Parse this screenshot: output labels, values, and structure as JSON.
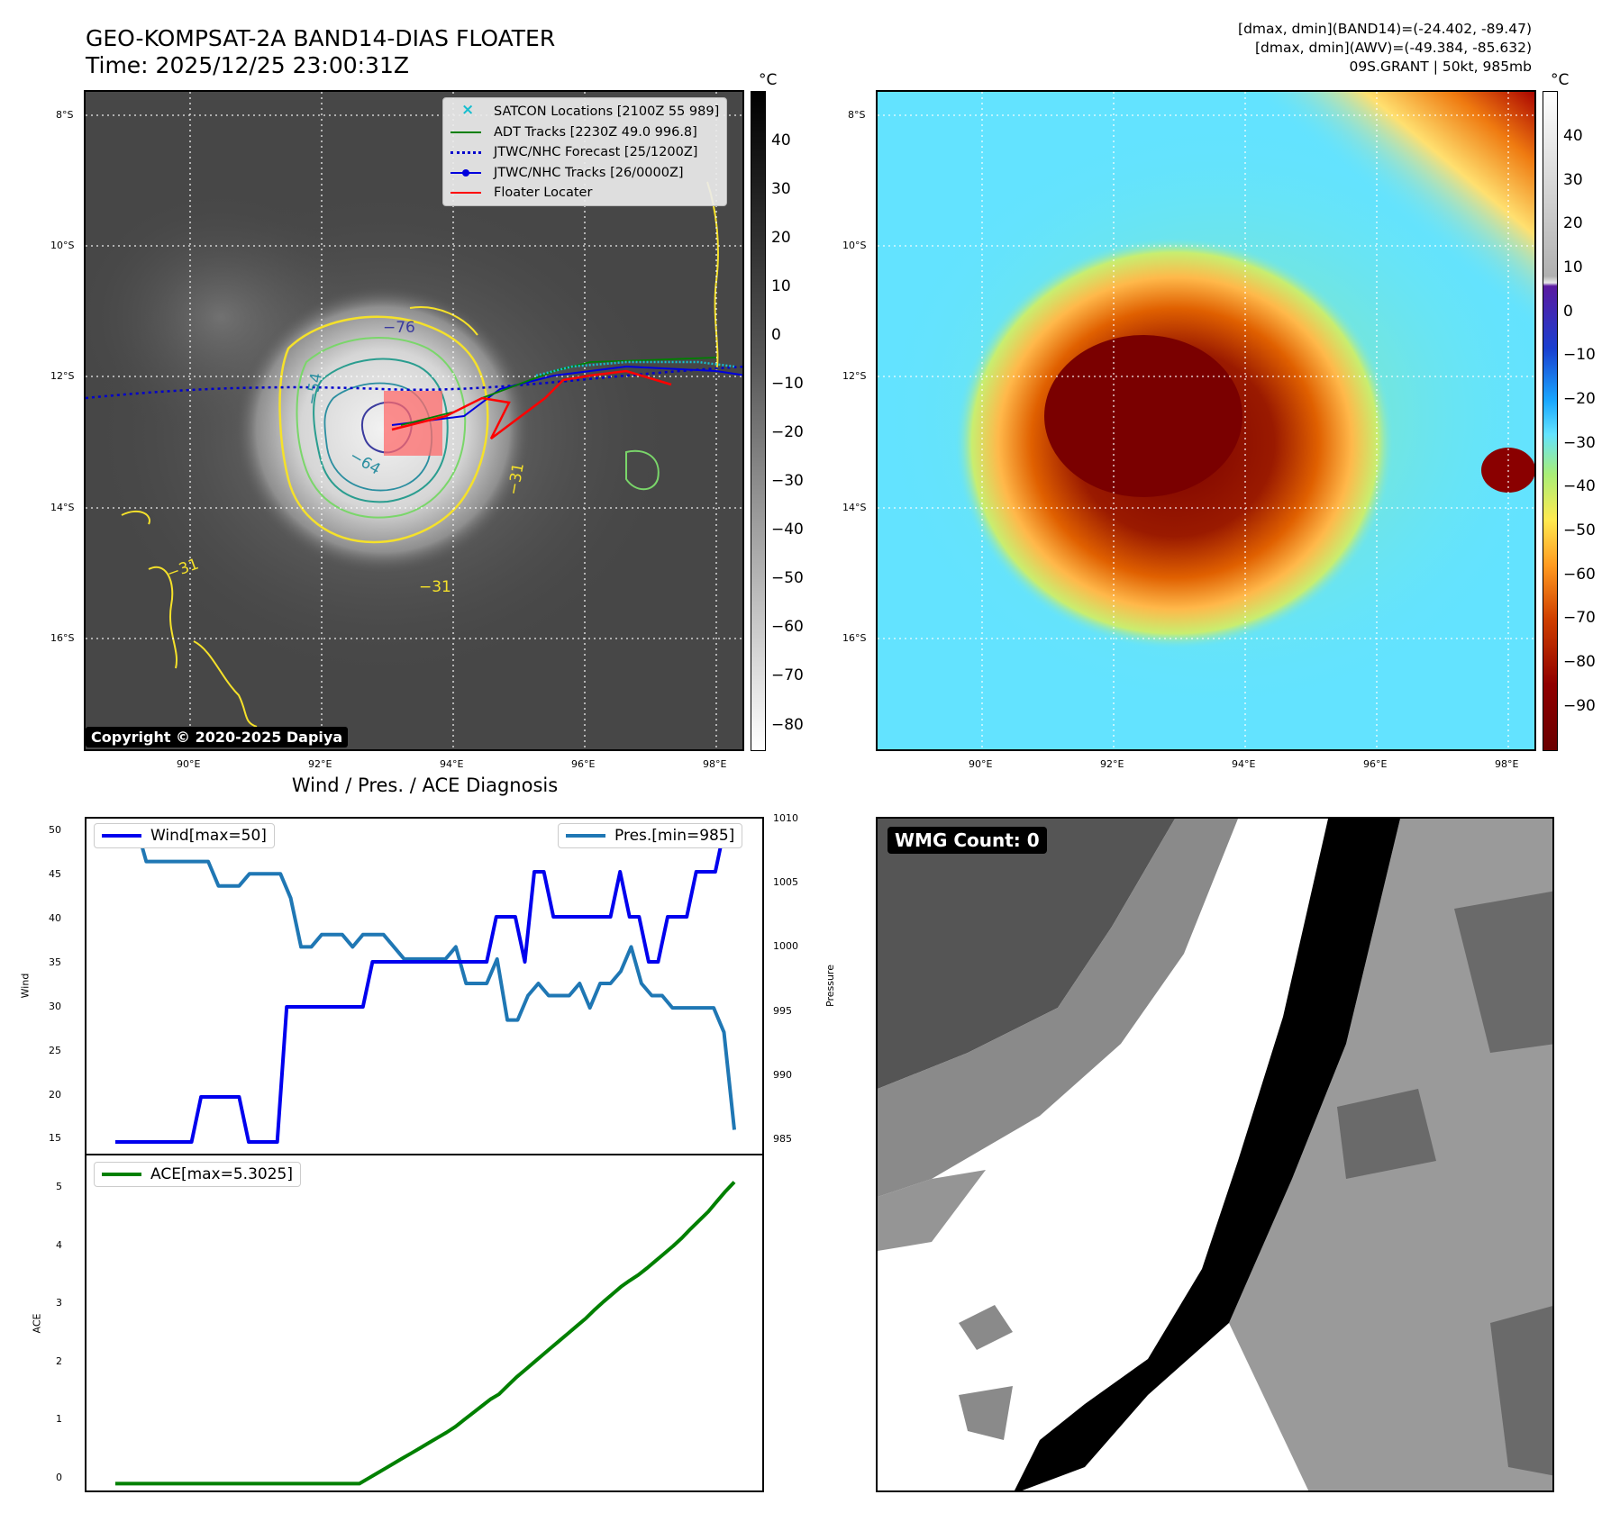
{
  "header": {
    "title_line1": "GEO-KOMPSAT-2A BAND14-DIAS FLOATER",
    "title_line2": "Time: 2025/12/25 23:00:31Z",
    "info_line1": "[dmax, dmin](BAND14)=(-24.402, -89.47)",
    "info_line2": "[dmax, dmin](AWV)=(-49.384, -85.632)",
    "info_line3": "09S.GRANT | 50kt, 985mb"
  },
  "map": {
    "lat_labels": [
      "8°S",
      "10°S",
      "12°S",
      "14°S",
      "16°S"
    ],
    "lon_labels": [
      "90°E",
      "92°E",
      "94°E",
      "96°E",
      "98°E"
    ],
    "colorbar_unit": "°C",
    "ir_colorbar_ticks": [
      "40",
      "30",
      "20",
      "10",
      "0",
      "−10",
      "−20",
      "−30",
      "−40",
      "−50",
      "−60",
      "−70",
      "−80"
    ],
    "awv_colorbar_ticks": [
      "40",
      "30",
      "20",
      "10",
      "0",
      "−10",
      "−20",
      "−30",
      "−40",
      "−50",
      "−60",
      "−70",
      "−80",
      "−90"
    ],
    "contour_labels": [
      "−76",
      "−54",
      "−64",
      "−31",
      "−31",
      "−31"
    ],
    "copyright": "Copyright © 2020-2025 Dapiya",
    "legend": [
      {
        "label": "SATCON Locations [2100Z 55 989]",
        "color": "#17becf",
        "style": "x"
      },
      {
        "label": "ADT Tracks [2230Z 49.0 996.8]",
        "color": "#008000",
        "style": "solid"
      },
      {
        "label": "JTWC/NHC Forecast [25/1200Z]",
        "color": "#0000cc",
        "style": "dotted"
      },
      {
        "label": "JTWC/NHC Tracks [26/0000Z]",
        "color": "#0000dd",
        "style": "dot-line"
      },
      {
        "label": "Floater Locater",
        "color": "#ff0000",
        "style": "solid"
      }
    ]
  },
  "diagnosis": {
    "title": "Wind / Pres. / ACE Diagnosis",
    "wind_legend": "Wind[max=50]",
    "pres_legend": "Pres.[min=985]",
    "ace_legend": "ACE[max=5.3025]",
    "wind_axis_label": "Wind",
    "pres_axis_label": "Pressure",
    "ace_axis_label": "ACE",
    "wind_ticks": [
      "50",
      "45",
      "40",
      "35",
      "30",
      "25",
      "20",
      "15"
    ],
    "pres_ticks": [
      "1010",
      "1005",
      "1000",
      "995",
      "990",
      "985"
    ],
    "ace_ticks": [
      "5",
      "4",
      "3",
      "2",
      "1",
      "0"
    ]
  },
  "wmg": {
    "label": "WMG Count: 0"
  },
  "colors": {
    "wind": "#0000ee",
    "pressure": "#1f77b4",
    "ace": "#008000"
  },
  "chart_data": [
    {
      "type": "line",
      "title": "Wind / Pres. / ACE Diagnosis",
      "ylabel": "Wind",
      "ylim": [
        14,
        51
      ],
      "series": [
        {
          "name": "Wind[max=50]",
          "values": [
            15,
            15,
            15,
            15,
            15,
            15,
            15,
            15,
            15,
            20,
            20,
            20,
            20,
            20,
            15,
            15,
            15,
            15,
            30,
            30,
            30,
            30,
            30,
            30,
            30,
            30,
            30,
            35,
            35,
            35,
            35,
            35,
            35,
            35,
            35,
            35,
            35,
            35,
            35,
            35,
            40,
            40,
            40,
            35,
            45,
            45,
            40,
            40,
            40,
            40,
            40,
            40,
            40,
            45,
            40,
            40,
            35,
            35,
            40,
            40,
            40,
            45,
            45,
            45,
            50,
            50
          ]
        }
      ]
    },
    {
      "type": "line",
      "ylabel": "Pressure",
      "ylim": [
        984,
        1010
      ],
      "series": [
        {
          "name": "Pres.[min=985]",
          "values": [
            1010,
            1010,
            1010,
            1007,
            1007,
            1007,
            1007,
            1007,
            1007,
            1007,
            1005,
            1005,
            1005,
            1006,
            1006,
            1006,
            1006,
            1004,
            1000,
            1000,
            1001,
            1001,
            1001,
            1000,
            1001,
            1001,
            1001,
            1000,
            999,
            999,
            999,
            999,
            999,
            1000,
            997,
            997,
            997,
            999,
            994,
            994,
            996,
            997,
            996,
            996,
            996,
            997,
            995,
            997,
            997,
            998,
            1000,
            997,
            996,
            996,
            995,
            995,
            995,
            995,
            995,
            993,
            985
          ]
        }
      ]
    },
    {
      "type": "line",
      "ylabel": "ACE",
      "ylim": [
        -0.2,
        5.5
      ],
      "series": [
        {
          "name": "ACE[max=5.3025]",
          "values": [
            0,
            0,
            0,
            0,
            0,
            0,
            0,
            0,
            0,
            0,
            0,
            0,
            0,
            0,
            0,
            0,
            0,
            0,
            0,
            0,
            0,
            0,
            0,
            0,
            0,
            0,
            0,
            0,
            0,
            0.09,
            0.18,
            0.27,
            0.36,
            0.45,
            0.54,
            0.63,
            0.72,
            0.81,
            0.9,
            1.0,
            1.12,
            1.24,
            1.36,
            1.48,
            1.57,
            1.72,
            1.87,
            2.0,
            2.13,
            2.26,
            2.39,
            2.52,
            2.65,
            2.78,
            2.91,
            3.06,
            3.2,
            3.33,
            3.46,
            3.57,
            3.67,
            3.79,
            3.92,
            4.05,
            4.18,
            4.32,
            4.48,
            4.63,
            4.78,
            4.96,
            5.14,
            5.3025
          ]
        }
      ]
    }
  ]
}
